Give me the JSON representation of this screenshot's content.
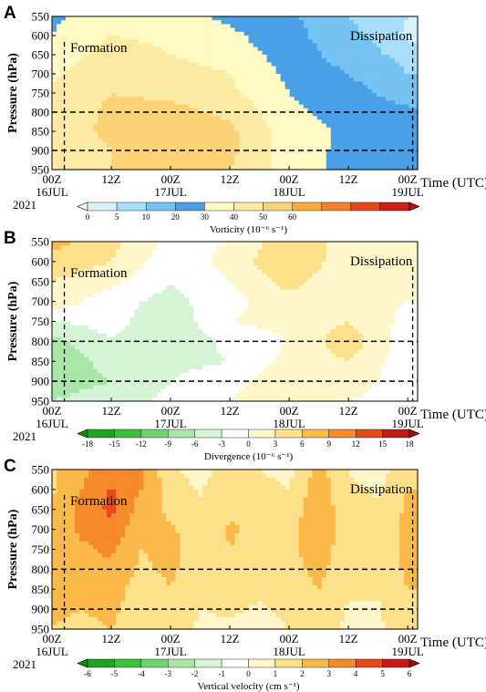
{
  "chart_data": [
    {
      "type": "heatmap",
      "panel_label": "A",
      "ylabel": "Pressure (hPa)",
      "xlabel": "Time (UTC)",
      "y_ticks": [
        "550",
        "600",
        "650",
        "700",
        "750",
        "800",
        "850",
        "900",
        "950"
      ],
      "x_ticks": [
        "00Z",
        "12Z",
        "00Z",
        "12Z",
        "00Z",
        "12Z",
        "00Z"
      ],
      "x_dates": [
        "16JUL",
        "",
        "17JUL",
        "",
        "18JUL",
        "",
        "19JUL"
      ],
      "year": "2021",
      "ylim": [
        950,
        550
      ],
      "x_range_hours": [
        0,
        74
      ],
      "annotations": [
        "Formation",
        "Dissipation"
      ],
      "colorbar": {
        "title": "Vorticity (10⁻⁶ s⁻¹)",
        "levels": [
          "0",
          "5",
          "10",
          "20",
          "30",
          "40",
          "50",
          "60"
        ],
        "colors": [
          "#ffffff",
          "#d7f2fb",
          "#a8defa",
          "#74c3f2",
          "#4a9fe6",
          "#fff9c4",
          "#fdeaa2",
          "#fcd276",
          "#faa93a",
          "#f28128",
          "#e9471b",
          "#d01e1e",
          "#b20f0f"
        ]
      },
      "field": {
        "levels_hpa": [
          550,
          600,
          650,
          700,
          750,
          800,
          850,
          900,
          950
        ],
        "hours": [
          0,
          12,
          24,
          36,
          48,
          60,
          72
        ],
        "values": [
          [
            28,
            36,
            34,
            28,
            22,
            10,
            5
          ],
          [
            30,
            40,
            38,
            32,
            24,
            12,
            4
          ],
          [
            34,
            44,
            40,
            35,
            26,
            15,
            7
          ],
          [
            38,
            48,
            45,
            40,
            28,
            20,
            10
          ],
          [
            42,
            50,
            48,
            42,
            30,
            24,
            15
          ],
          [
            44,
            52,
            53,
            48,
            32,
            26,
            22
          ],
          [
            45,
            52,
            56,
            52,
            35,
            28,
            26
          ],
          [
            44,
            50,
            58,
            53,
            34,
            28,
            27
          ],
          [
            43,
            50,
            56,
            50,
            35,
            27,
            26
          ]
        ]
      }
    },
    {
      "type": "heatmap",
      "panel_label": "B",
      "ylabel": "Pressure (hPa)",
      "xlabel": "Time (UTC)",
      "y_ticks": [
        "550",
        "600",
        "650",
        "700",
        "750",
        "800",
        "850",
        "900",
        "950"
      ],
      "x_ticks": [
        "00Z",
        "12Z",
        "00Z",
        "12Z",
        "00Z",
        "12Z",
        "00Z"
      ],
      "x_dates": [
        "16JUL",
        "",
        "17JUL",
        "",
        "18JUL",
        "",
        "19JUL"
      ],
      "year": "2021",
      "ylim": [
        950,
        550
      ],
      "x_range_hours": [
        0,
        74
      ],
      "annotations": [
        "Formation",
        "Dissipation"
      ],
      "colorbar": {
        "title": "Divergence (10⁻⁶ s⁻¹)",
        "levels": [
          "-18",
          "-15",
          "-12",
          "-9",
          "-6",
          "-3",
          "0",
          "3",
          "6",
          "9",
          "12",
          "15",
          "18"
        ],
        "colors": [
          "#0f8a0f",
          "#21a321",
          "#3cbf3c",
          "#6fd46f",
          "#a9e7a9",
          "#d6f3d6",
          "#ffffff",
          "#fff6c9",
          "#fde08a",
          "#fbb94a",
          "#f58a2b",
          "#e64a19",
          "#c41a1a",
          "#a00c0c"
        ]
      },
      "field": {
        "levels_hpa": [
          550,
          600,
          650,
          700,
          750,
          800,
          850,
          900,
          950
        ],
        "hours": [
          0,
          12,
          24,
          36,
          48,
          60,
          72
        ],
        "values": [
          [
            7,
            4,
            -1,
            0,
            5,
            2,
            1
          ],
          [
            5,
            3,
            -2,
            1,
            6,
            1,
            0
          ],
          [
            3,
            1,
            -3,
            0,
            4,
            0,
            0
          ],
          [
            2,
            -2,
            -4,
            -1,
            2,
            1,
            0
          ],
          [
            -3,
            -2,
            -5,
            0,
            1,
            3,
            -1
          ],
          [
            -7,
            -3,
            -6,
            -2,
            0,
            5,
            -2
          ],
          [
            -8,
            -5,
            -4,
            -3,
            1,
            3,
            -2
          ],
          [
            -7,
            -6,
            -3,
            -1,
            2,
            1,
            -1
          ],
          [
            -6,
            -5,
            -2,
            0,
            3,
            0,
            -1
          ]
        ]
      }
    },
    {
      "type": "heatmap",
      "panel_label": "C",
      "ylabel": "Pressure (hPa)",
      "xlabel": "Time (UTC)",
      "y_ticks": [
        "550",
        "600",
        "650",
        "700",
        "750",
        "800",
        "850",
        "900",
        "950"
      ],
      "x_ticks": [
        "00Z",
        "12Z",
        "00Z",
        "12Z",
        "00Z",
        "12Z",
        "00Z"
      ],
      "x_dates": [
        "16JUL",
        "",
        "17JUL",
        "",
        "18JUL",
        "",
        "19JUL"
      ],
      "year": "2021",
      "ylim": [
        950,
        550
      ],
      "x_range_hours": [
        0,
        74
      ],
      "annotations": [
        "Formation",
        "Dissipation"
      ],
      "colorbar": {
        "title": "Vertical velocity (cm s⁻¹)",
        "levels": [
          "-6",
          "-5",
          "-4",
          "-3",
          "-2",
          "-1",
          "0",
          "1",
          "2",
          "3",
          "4",
          "5",
          "6"
        ],
        "colors": [
          "#0f8a0f",
          "#21a321",
          "#3cbf3c",
          "#6fd46f",
          "#a9e7a9",
          "#d6f3d6",
          "#ffffff",
          "#fff6c9",
          "#fde08a",
          "#fbb94a",
          "#f58a2b",
          "#e64a19",
          "#c41a1a",
          "#a00c0c"
        ]
      },
      "field": {
        "levels_hpa": [
          550,
          600,
          650,
          700,
          750,
          800,
          850,
          900,
          950
        ],
        "hours": [
          0,
          6,
          12,
          18,
          24,
          30,
          36,
          42,
          48,
          54,
          60,
          66,
          72
        ],
        "values": [
          [
            1.8,
            2.8,
            3.6,
            3.2,
            1.2,
            0.6,
            1.6,
            1.0,
            0.7,
            2.4,
            1.0,
            0.6,
            1.6
          ],
          [
            1.9,
            3.0,
            4.1,
            3.0,
            1.5,
            0.9,
            1.8,
            1.3,
            1.0,
            2.6,
            1.1,
            0.9,
            2.0
          ],
          [
            2.0,
            3.4,
            4.2,
            2.6,
            1.8,
            1.2,
            1.9,
            1.6,
            1.3,
            2.8,
            1.2,
            1.1,
            2.2
          ],
          [
            2.2,
            3.2,
            3.8,
            2.2,
            2.1,
            1.5,
            2.1,
            1.8,
            1.6,
            2.9,
            1.3,
            1.3,
            2.3
          ],
          [
            2.4,
            2.8,
            3.2,
            2.0,
            2.3,
            1.5,
            2.0,
            1.7,
            1.7,
            2.6,
            1.3,
            1.4,
            2.3
          ],
          [
            2.5,
            2.6,
            2.8,
            1.8,
            2.2,
            1.4,
            1.7,
            1.5,
            1.6,
            2.3,
            1.2,
            1.3,
            2.2
          ],
          [
            2.4,
            2.3,
            2.5,
            1.5,
            2.0,
            1.2,
            1.4,
            1.2,
            1.4,
            2.0,
            1.1,
            1.1,
            2.0
          ],
          [
            2.2,
            2.0,
            2.3,
            1.3,
            1.8,
            1.0,
            1.1,
            0.9,
            1.2,
            1.7,
            0.9,
            0.9,
            1.8
          ],
          [
            2.0,
            1.7,
            2.0,
            1.1,
            1.6,
            0.8,
            0.9,
            0.7,
            1.0,
            1.5,
            0.8,
            0.8,
            1.7
          ]
        ]
      }
    }
  ]
}
